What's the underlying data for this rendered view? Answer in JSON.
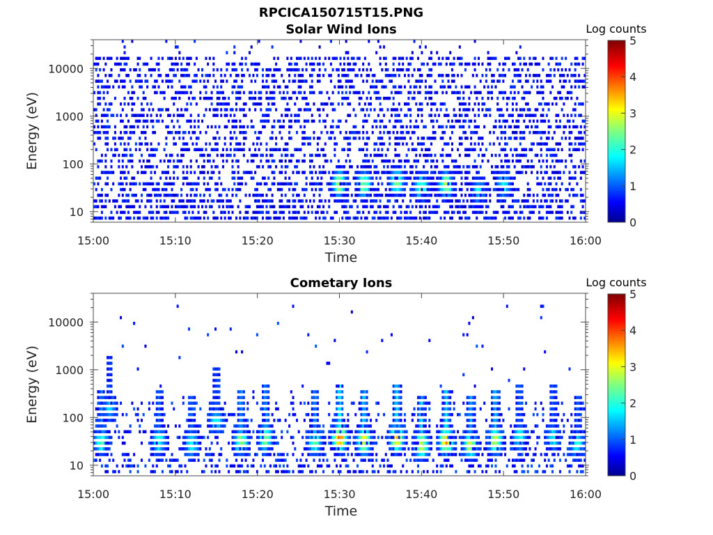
{
  "figure_title": "RPCICA150715T15.PNG",
  "colormap": [
    "#00008f",
    "#0000ff",
    "#0080ff",
    "#00ffff",
    "#80ff80",
    "#ffff00",
    "#ff8000",
    "#ff0000",
    "#800000"
  ],
  "chart_data": [
    {
      "type": "heatmap",
      "title": "Solar Wind Ions",
      "xlabel": "Time",
      "ylabel": "Energy (eV)",
      "x_ticks": [
        "15:00",
        "15:10",
        "15:20",
        "15:30",
        "15:40",
        "15:50",
        "16:00"
      ],
      "xlim": [
        "15:00",
        "16:00"
      ],
      "y_scale": "log",
      "y_ticks": [
        10,
        100,
        1000,
        10000
      ],
      "ylim": [
        6,
        40000
      ],
      "colorbar": {
        "title": "Log counts",
        "ticks": [
          0,
          1,
          2,
          3,
          4,
          5
        ],
        "range": [
          0,
          5
        ]
      },
      "grid": false,
      "features": [
        {
          "time": "15:30",
          "energy_eV": 35,
          "log_counts": 3.0
        },
        {
          "time": "15:33",
          "energy_eV": 35,
          "log_counts": 2.8
        },
        {
          "time": "15:37",
          "energy_eV": 40,
          "log_counts": 2.6
        },
        {
          "time": "15:40",
          "energy_eV": 30,
          "log_counts": 2.6
        },
        {
          "time": "15:43",
          "energy_eV": 35,
          "log_counts": 2.8
        },
        {
          "time": "15:47",
          "energy_eV": 25,
          "log_counts": 2.0
        },
        {
          "time": "15:50",
          "energy_eV": 35,
          "log_counts": 2.2
        }
      ]
    },
    {
      "type": "heatmap",
      "title": "Cometary Ions",
      "xlabel": "Time",
      "ylabel": "Energy (eV)",
      "x_ticks": [
        "15:00",
        "15:10",
        "15:20",
        "15:30",
        "15:40",
        "15:50",
        "16:00"
      ],
      "xlim": [
        "15:00",
        "16:00"
      ],
      "y_scale": "log",
      "y_ticks": [
        10,
        100,
        1000,
        10000
      ],
      "ylim": [
        6,
        40000
      ],
      "colorbar": {
        "title": "Log counts",
        "ticks": [
          0,
          1,
          2,
          3,
          4,
          5
        ],
        "range": [
          0,
          5
        ]
      },
      "grid": false,
      "features": [
        {
          "time": "15:01",
          "energy_eV": 30,
          "log_counts": 2.5
        },
        {
          "time": "15:02",
          "energy_eV": 150,
          "log_counts": 1.8
        },
        {
          "time": "15:08",
          "energy_eV": 30,
          "log_counts": 2.2
        },
        {
          "time": "15:12",
          "energy_eV": 25,
          "log_counts": 2.2
        },
        {
          "time": "15:15",
          "energy_eV": 80,
          "log_counts": 2.0
        },
        {
          "time": "15:18",
          "energy_eV": 30,
          "log_counts": 2.8
        },
        {
          "time": "15:21",
          "energy_eV": 35,
          "log_counts": 2.8
        },
        {
          "time": "15:27",
          "energy_eV": 30,
          "log_counts": 2.6
        },
        {
          "time": "15:30",
          "energy_eV": 35,
          "log_counts": 4.0
        },
        {
          "time": "15:33",
          "energy_eV": 30,
          "log_counts": 3.4
        },
        {
          "time": "15:37",
          "energy_eV": 35,
          "log_counts": 3.6
        },
        {
          "time": "15:40",
          "energy_eV": 25,
          "log_counts": 3.4
        },
        {
          "time": "15:43",
          "energy_eV": 30,
          "log_counts": 3.7
        },
        {
          "time": "15:46",
          "energy_eV": 25,
          "log_counts": 3.0
        },
        {
          "time": "15:49",
          "energy_eV": 30,
          "log_counts": 3.2
        },
        {
          "time": "15:52",
          "energy_eV": 35,
          "log_counts": 2.2
        },
        {
          "time": "15:56",
          "energy_eV": 35,
          "log_counts": 2.0
        },
        {
          "time": "15:59",
          "energy_eV": 25,
          "log_counts": 2.2
        }
      ]
    }
  ]
}
